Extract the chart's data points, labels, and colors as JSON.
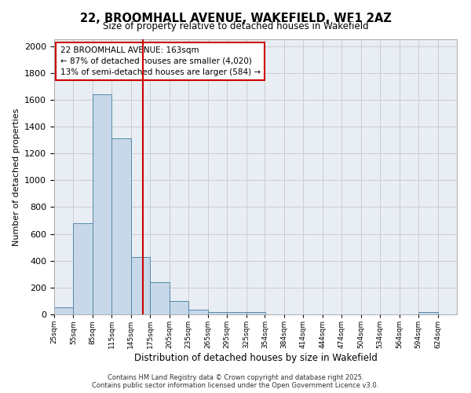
{
  "title_line1": "22, BROOMHALL AVENUE, WAKEFIELD, WF1 2AZ",
  "title_line2": "Size of property relative to detached houses in Wakefield",
  "xlabel": "Distribution of detached houses by size in Wakefield",
  "ylabel": "Number of detached properties",
  "bins_left": [
    25,
    55,
    85,
    115,
    145,
    175,
    205,
    235,
    265,
    295,
    325,
    354,
    384,
    414,
    444,
    474,
    504,
    534,
    564,
    594
  ],
  "counts": [
    55,
    680,
    1640,
    1310,
    430,
    240,
    100,
    35,
    20,
    15,
    20,
    0,
    0,
    0,
    0,
    0,
    0,
    0,
    0,
    20
  ],
  "bar_color": "#c8d8e8",
  "bar_edgecolor": "#5588aa",
  "red_line_x": 163,
  "annotation_title": "22 BROOMHALL AVENUE: 163sqm",
  "annotation_line1": "← 87% of detached houses are smaller (4,020)",
  "annotation_line2": "13% of semi-detached houses are larger (584) →",
  "annotation_box_color": "#ffffff",
  "annotation_box_edgecolor": "#cc0000",
  "red_line_color": "#cc0000",
  "ylim": [
    0,
    2050
  ],
  "yticks": [
    0,
    200,
    400,
    600,
    800,
    1000,
    1200,
    1400,
    1600,
    1800,
    2000
  ],
  "grid_color": "#cccccc",
  "background_color": "#e8eef4",
  "footer_line1": "Contains HM Land Registry data © Crown copyright and database right 2025.",
  "footer_line2": "Contains public sector information licensed under the Open Government Licence v3.0.",
  "tick_labels": [
    "25sqm",
    "55sqm",
    "85sqm",
    "115sqm",
    "145sqm",
    "175sqm",
    "205sqm",
    "235sqm",
    "265sqm",
    "295sqm",
    "325sqm",
    "354sqm",
    "384sqm",
    "414sqm",
    "444sqm",
    "474sqm",
    "504sqm",
    "534sqm",
    "564sqm",
    "594sqm",
    "624sqm"
  ],
  "xlim_min": 25,
  "xlim_max": 654
}
